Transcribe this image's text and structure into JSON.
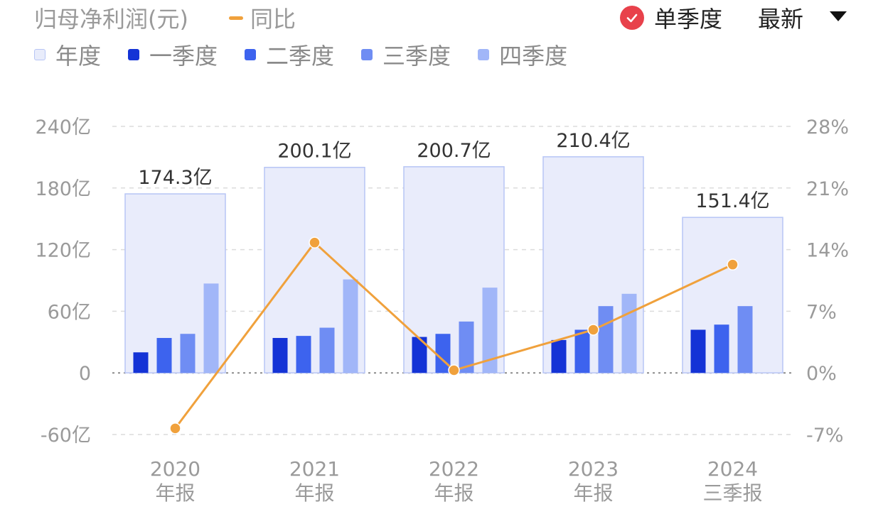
{
  "header": {
    "title": "归母净利润(元)",
    "yoy_label": "同比",
    "toggle_label": "单季度",
    "dropdown_label": "最新"
  },
  "legend": [
    {
      "label": "年度",
      "color": "#e8ecfb"
    },
    {
      "label": "一季度",
      "color": "#1433d6"
    },
    {
      "label": "二季度",
      "color": "#3d63ee"
    },
    {
      "label": "三季度",
      "color": "#6f8df3"
    },
    {
      "label": "四季度",
      "color": "#a1b6f8"
    }
  ],
  "colors": {
    "annual_fill": "#e9ecfb",
    "annual_border": "#b7c5f5",
    "yoy_line": "#f0a13c",
    "check_icon": "#e8414b",
    "grid": "#dcdcdc",
    "axis_text": "#9a9a9a",
    "value_text": "#333333"
  },
  "chart_data": {
    "type": "bar",
    "categories": [
      {
        "year": "2020",
        "period": "年报"
      },
      {
        "year": "2021",
        "period": "年报"
      },
      {
        "year": "2022",
        "period": "年报"
      },
      {
        "year": "2023",
        "period": "年报"
      },
      {
        "year": "2024",
        "period": "三季报"
      }
    ],
    "annual_values": [
      174.3,
      200.1,
      200.7,
      210.4,
      151.4
    ],
    "annual_labels": [
      "174.3亿",
      "200.1亿",
      "200.7亿",
      "210.4亿",
      "151.4亿"
    ],
    "series": [
      {
        "name": "一季度",
        "values": [
          20,
          34,
          35,
          32,
          42
        ]
      },
      {
        "name": "二季度",
        "values": [
          34,
          36,
          38,
          42,
          47
        ]
      },
      {
        "name": "三季度",
        "values": [
          38,
          44,
          50,
          65,
          65
        ]
      },
      {
        "name": "四季度",
        "values": [
          87,
          91,
          83,
          77,
          null
        ]
      }
    ],
    "yoy": {
      "name": "同比",
      "values": [
        -6.3,
        14.8,
        0.3,
        4.9,
        12.3
      ]
    },
    "y_left": {
      "min": -60,
      "max": 240,
      "ticks": [
        -60,
        0,
        60,
        120,
        180,
        240
      ],
      "tick_labels": [
        "-60亿",
        "0",
        "60亿",
        "120亿",
        "180亿",
        "240亿"
      ]
    },
    "y_right": {
      "min": -7,
      "max": 28,
      "ticks": [
        -7,
        0,
        7,
        14,
        21,
        28
      ],
      "tick_labels": [
        "-7%",
        "0%",
        "7%",
        "14%",
        "21%",
        "28%"
      ]
    },
    "grid": true
  }
}
